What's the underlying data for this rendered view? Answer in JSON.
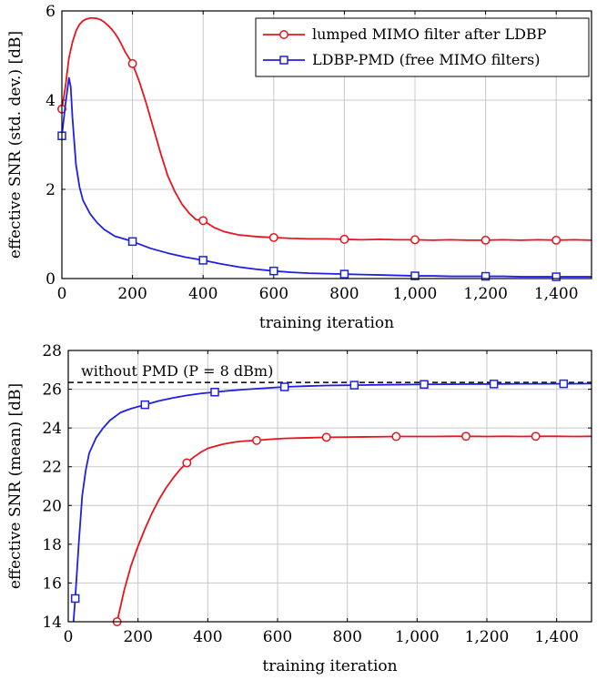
{
  "chart_data": [
    {
      "type": "line",
      "title": "",
      "xlabel": "training iteration",
      "ylabel": "effective SNR (std. dev.) [dB]",
      "xlim": [
        0,
        1500
      ],
      "ylim": [
        0,
        6
      ],
      "x_ticks": [
        0,
        200,
        400,
        600,
        800,
        1000,
        1200,
        1400
      ],
      "x_tick_labels": [
        "0",
        "200",
        "400",
        "600",
        "800",
        "1,000",
        "1,200",
        "1,400"
      ],
      "y_ticks": [
        0,
        2,
        4,
        6
      ],
      "y_tick_labels": [
        "0",
        "2",
        "4",
        "6"
      ],
      "grid": true,
      "legend_position": "top-right",
      "series": [
        {
          "name": "lumped MIMO filter after LDBP",
          "color": "#e8141e",
          "marker": "circle",
          "x": [
            0,
            10,
            20,
            30,
            40,
            50,
            60,
            70,
            80,
            90,
            100,
            110,
            120,
            130,
            140,
            150,
            160,
            170,
            180,
            200,
            220,
            240,
            260,
            280,
            300,
            320,
            340,
            360,
            380,
            400,
            430,
            460,
            500,
            550,
            600,
            650,
            700,
            750,
            800,
            850,
            900,
            950,
            1000,
            1050,
            1100,
            1150,
            1200,
            1250,
            1300,
            1350,
            1400,
            1450,
            1500
          ],
          "values": [
            3.8,
            4.3,
            4.95,
            5.3,
            5.55,
            5.7,
            5.78,
            5.82,
            5.84,
            5.84,
            5.83,
            5.8,
            5.75,
            5.68,
            5.6,
            5.5,
            5.38,
            5.23,
            5.07,
            4.82,
            4.4,
            3.9,
            3.35,
            2.8,
            2.3,
            1.95,
            1.67,
            1.47,
            1.32,
            1.3,
            1.15,
            1.05,
            0.98,
            0.94,
            0.92,
            0.9,
            0.89,
            0.89,
            0.88,
            0.87,
            0.88,
            0.87,
            0.87,
            0.86,
            0.87,
            0.86,
            0.86,
            0.87,
            0.86,
            0.87,
            0.86,
            0.87,
            0.86
          ],
          "marker_x": [
            0,
            200,
            400,
            600,
            800,
            1000,
            1200,
            1400
          ],
          "marker_values": [
            3.8,
            4.82,
            1.3,
            0.92,
            0.88,
            0.87,
            0.86,
            0.86
          ]
        },
        {
          "name": "LDBP-PMD (free MIMO filters)",
          "color": "#1f1fe6",
          "marker": "square",
          "x": [
            0,
            10,
            20,
            25,
            30,
            40,
            50,
            60,
            80,
            100,
            120,
            150,
            180,
            200,
            250,
            300,
            350,
            400,
            450,
            500,
            550,
            600,
            650,
            700,
            750,
            800,
            850,
            900,
            950,
            1000,
            1050,
            1100,
            1150,
            1200,
            1250,
            1300,
            1350,
            1400,
            1450,
            1500
          ],
          "values": [
            3.2,
            3.9,
            4.5,
            4.3,
            3.6,
            2.55,
            2.05,
            1.75,
            1.45,
            1.25,
            1.1,
            0.95,
            0.88,
            0.83,
            0.68,
            0.57,
            0.48,
            0.41,
            0.33,
            0.26,
            0.21,
            0.17,
            0.14,
            0.12,
            0.11,
            0.1,
            0.09,
            0.08,
            0.07,
            0.06,
            0.06,
            0.05,
            0.05,
            0.05,
            0.05,
            0.04,
            0.04,
            0.04,
            0.04,
            0.04
          ],
          "marker_x": [
            0,
            200,
            400,
            600,
            800,
            1000,
            1200,
            1400
          ],
          "marker_values": [
            3.2,
            0.83,
            0.41,
            0.17,
            0.1,
            0.06,
            0.05,
            0.04
          ]
        }
      ]
    },
    {
      "type": "line",
      "title": "",
      "xlabel": "training iteration",
      "ylabel": "effective SNR (mean) [dB]",
      "xlim": [
        0,
        1500
      ],
      "ylim": [
        14,
        28
      ],
      "x_ticks": [
        0,
        200,
        400,
        600,
        800,
        1000,
        1200,
        1400
      ],
      "x_tick_labels": [
        "0",
        "200",
        "400",
        "600",
        "800",
        "1,000",
        "1,200",
        "1,400"
      ],
      "y_ticks": [
        14,
        16,
        18,
        20,
        22,
        24,
        26,
        28
      ],
      "y_tick_labels": [
        "14",
        "16",
        "18",
        "20",
        "22",
        "24",
        "26",
        "28"
      ],
      "grid": true,
      "annotations": [
        {
          "label": "without PMD (P = 8 dBm)",
          "y": 26.35,
          "style": "dashed",
          "color": "#000000"
        }
      ],
      "series": [
        {
          "name": "lumped MIMO filter after LDBP",
          "color": "#e8141e",
          "marker": "circle",
          "x": [
            140,
            160,
            180,
            200,
            220,
            240,
            260,
            280,
            300,
            320,
            340,
            360,
            380,
            400,
            420,
            440,
            460,
            480,
            500,
            540,
            580,
            620,
            660,
            700,
            740,
            800,
            850,
            900,
            940,
            1000,
            1050,
            1100,
            1140,
            1200,
            1250,
            1300,
            1340,
            1400,
            1450,
            1500
          ],
          "values": [
            14.0,
            15.6,
            16.9,
            17.9,
            18.8,
            19.6,
            20.3,
            20.9,
            21.4,
            21.85,
            22.2,
            22.5,
            22.75,
            22.95,
            23.05,
            23.15,
            23.22,
            23.28,
            23.32,
            23.36,
            23.42,
            23.46,
            23.48,
            23.5,
            23.52,
            23.53,
            23.54,
            23.55,
            23.56,
            23.56,
            23.56,
            23.57,
            23.57,
            23.56,
            23.57,
            23.56,
            23.57,
            23.57,
            23.56,
            23.57
          ],
          "marker_x": [
            140,
            340,
            540,
            740,
            940,
            1140,
            1340
          ],
          "marker_values": [
            14.0,
            22.2,
            23.36,
            23.52,
            23.56,
            23.57,
            23.57
          ]
        },
        {
          "name": "LDBP-PMD (free MIMO filters)",
          "color": "#1f1fe6",
          "marker": "square",
          "x": [
            15,
            20,
            30,
            40,
            50,
            60,
            80,
            100,
            120,
            150,
            180,
            220,
            260,
            300,
            340,
            380,
            420,
            460,
            500,
            560,
            620,
            680,
            740,
            820,
            900,
            1020,
            1100,
            1220,
            1300,
            1420,
            1500
          ],
          "values": [
            14.0,
            15.2,
            18.0,
            20.5,
            21.8,
            22.7,
            23.5,
            24.0,
            24.4,
            24.8,
            25.0,
            25.2,
            25.4,
            25.55,
            25.68,
            25.78,
            25.85,
            25.92,
            25.98,
            26.05,
            26.12,
            26.16,
            26.19,
            26.21,
            26.23,
            26.25,
            26.26,
            26.27,
            26.28,
            26.28,
            26.29
          ],
          "marker_x": [
            20,
            220,
            420,
            620,
            820,
            1020,
            1220,
            1420
          ],
          "marker_values": [
            15.2,
            25.2,
            25.85,
            26.12,
            26.21,
            26.25,
            26.27,
            26.28
          ]
        }
      ]
    }
  ]
}
